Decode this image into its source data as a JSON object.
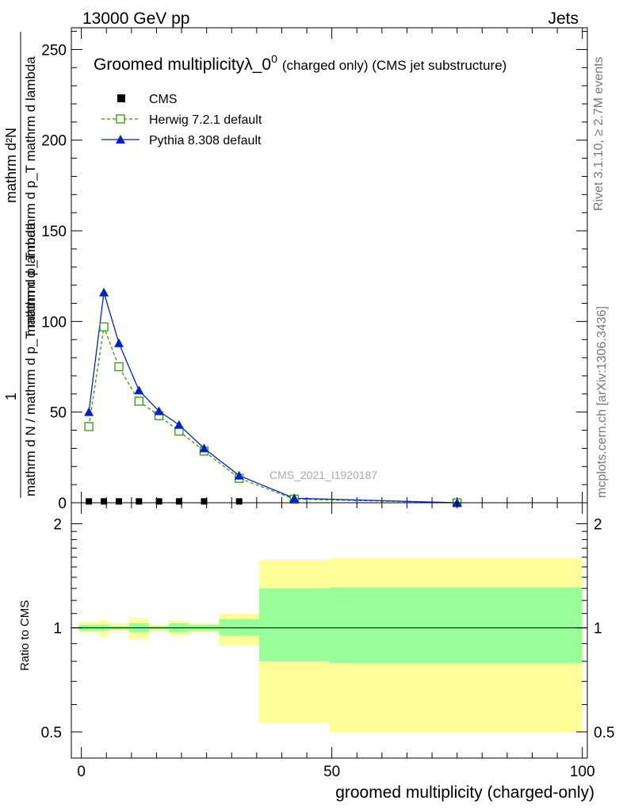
{
  "header": {
    "energy": "13000 GeV pp",
    "process": "Jets"
  },
  "side_labels": {
    "rivet": "Rivet 3.1.10, ≥ 2.7M events",
    "site": "mcplots.cern.ch [arXiv:1306.3436]"
  },
  "watermark": "CMS_2021_I1920187",
  "chart_data": [
    {
      "type": "line",
      "title_main": "Groomed multiplicityλ_0",
      "title_sup": "0",
      "title_note": "(charged only) (CMS jet substructure)",
      "ylabel_numerator": "1",
      "ylabel_denominator": "mathrm d N / mathrm d p_T mathrm d lambda",
      "ylabel_upper": "mathrm d²N",
      "ylabel_lower": "mathrm d p_T mathrm d p_T mathrm d lambda",
      "xlim": [
        -2,
        101
      ],
      "ylim": [
        0,
        262
      ],
      "yticks": [
        0,
        50,
        100,
        150,
        200,
        250
      ],
      "legend": [
        "CMS",
        "Herwig 7.2.1 default",
        "Pythia 8.308 default"
      ],
      "colors": {
        "cms": "#000000",
        "herwig": "#339900",
        "pythia": "#0022cc"
      },
      "series": [
        {
          "name": "CMS",
          "x": [
            1.5,
            4.5,
            7.5,
            11.5,
            15.5,
            19.5,
            24.5,
            31.5
          ],
          "y": [
            0.3,
            0.3,
            0.3,
            0.3,
            0.3,
            0.3,
            0.3,
            0.3
          ]
        },
        {
          "name": "Herwig 7.2.1 default",
          "x": [
            1.5,
            4.5,
            7.5,
            11.5,
            15.5,
            19.5,
            24.5,
            31.5,
            42.5,
            75
          ],
          "y": [
            42,
            97,
            75,
            56,
            48,
            39.5,
            28.5,
            13.5,
            2,
            0
          ]
        },
        {
          "name": "Pythia 8.308 default",
          "x": [
            1.5,
            4.5,
            7.5,
            11.5,
            15.5,
            19.5,
            24.5,
            31.5,
            42.5,
            75
          ],
          "y": [
            50,
            116,
            88,
            62,
            50.5,
            43,
            30,
            15,
            2.5,
            0
          ]
        }
      ]
    },
    {
      "type": "area",
      "ylabel": "Ratio to CMS",
      "xlabel": "groomed multiplicity (charged-only)",
      "xlim": [
        -2,
        101
      ],
      "ylim": [
        0.42,
        2.3
      ],
      "xticks": [
        0,
        50,
        100
      ],
      "yticks": [
        0.5,
        1,
        2
      ],
      "colors": {
        "total": "#ffff99",
        "stat": "#99ff99",
        "line": "#000000"
      },
      "bands": [
        {
          "x0": -0.5,
          "x1": 3.5,
          "lo": 0.97,
          "hi": 1.04,
          "slo": 0.98,
          "shi": 1.02
        },
        {
          "x0": 3.5,
          "x1": 5.5,
          "lo": 0.94,
          "hi": 1.05,
          "slo": 0.98,
          "shi": 1.02
        },
        {
          "x0": 5.5,
          "x1": 9.5,
          "lo": 0.98,
          "hi": 1.03,
          "slo": 0.99,
          "shi": 1.01
        },
        {
          "x0": 9.5,
          "x1": 13.5,
          "lo": 0.93,
          "hi": 1.07,
          "slo": 0.97,
          "shi": 1.03
        },
        {
          "x0": 13.5,
          "x1": 17.5,
          "lo": 0.98,
          "hi": 1.02,
          "slo": 0.99,
          "shi": 1.01
        },
        {
          "x0": 17.5,
          "x1": 21.5,
          "lo": 0.95,
          "hi": 1.05,
          "slo": 0.97,
          "shi": 1.03
        },
        {
          "x0": 21.5,
          "x1": 27.5,
          "lo": 0.97,
          "hi": 1.03,
          "slo": 0.98,
          "shi": 1.02
        },
        {
          "x0": 27.5,
          "x1": 35.5,
          "lo": 0.89,
          "hi": 1.1,
          "slo": 0.95,
          "shi": 1.06
        },
        {
          "x0": 35.5,
          "x1": 49.5,
          "lo": 0.53,
          "hi": 1.57,
          "slo": 0.8,
          "shi": 1.3
        },
        {
          "x0": 49.5,
          "x1": 100,
          "lo": 0.5,
          "hi": 1.59,
          "slo": 0.79,
          "shi": 1.31
        }
      ]
    }
  ]
}
